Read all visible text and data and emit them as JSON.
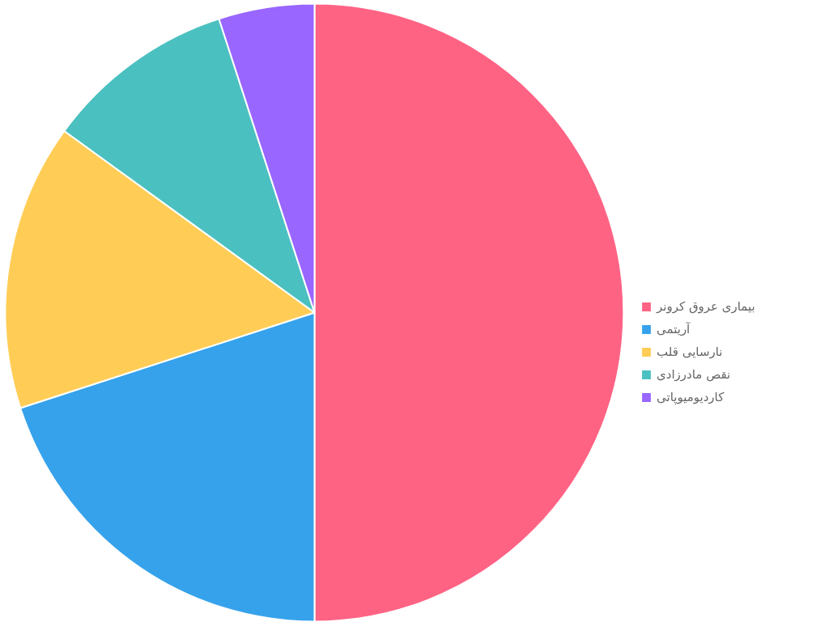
{
  "chart_data": {
    "type": "pie",
    "categories": [
      "بیماری عروق کرونر",
      "آریتمی",
      "نارسایی قلب",
      "نقص مادرزادی",
      "کاردیومیوپاتی"
    ],
    "values": [
      50,
      20,
      15,
      10,
      5
    ],
    "colors": [
      "#ff6384",
      "#36a2eb",
      "#ffcd56",
      "#4bc0c0",
      "#9966ff"
    ],
    "legend": "right"
  }
}
